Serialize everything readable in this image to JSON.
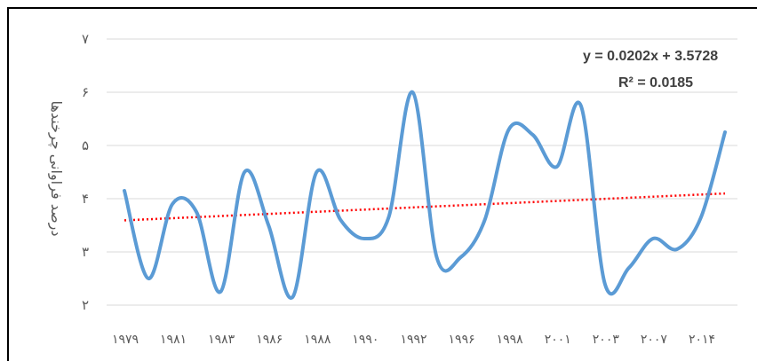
{
  "chart_data": {
    "type": "line",
    "ylabel": "درصد فراوانی چرخندها",
    "xlabel": "",
    "title": "",
    "ylim": [
      2,
      7
    ],
    "y_ticks": [
      "۲",
      "۳",
      "۴",
      "۵",
      "۶",
      "۷"
    ],
    "y_tick_values": [
      2,
      3,
      4,
      5,
      6,
      7
    ],
    "x_tick_labels": [
      "۱۹۷۹",
      "۱۹۸۱",
      "۱۹۸۳",
      "۱۹۸۶",
      "۱۹۸۸",
      "۱۹۹۰",
      "۱۹۹۲",
      "۱۹۹۶",
      "۱۹۹۸",
      "۲۰۰۱",
      "۲۰۰۳",
      "۲۰۰۷",
      "۲۰۱۴"
    ],
    "grid": true,
    "series": [
      {
        "color": "#5b9bd5",
        "smooth": true,
        "values": [
          4.15,
          2.5,
          3.9,
          3.75,
          2.25,
          4.5,
          3.5,
          2.15,
          4.5,
          3.6,
          3.25,
          3.65,
          6.0,
          2.9,
          2.9,
          3.6,
          5.3,
          5.2,
          4.6,
          5.75,
          2.4,
          2.7,
          3.25,
          3.05,
          3.65,
          5.25
        ]
      }
    ],
    "trendline": {
      "color": "#ff0000",
      "style": "dotted",
      "equation": "y = 0.0202x + 3.5728",
      "r_squared": "R² = 0.0185",
      "slope": 0.0202,
      "intercept": 3.5728
    }
  }
}
